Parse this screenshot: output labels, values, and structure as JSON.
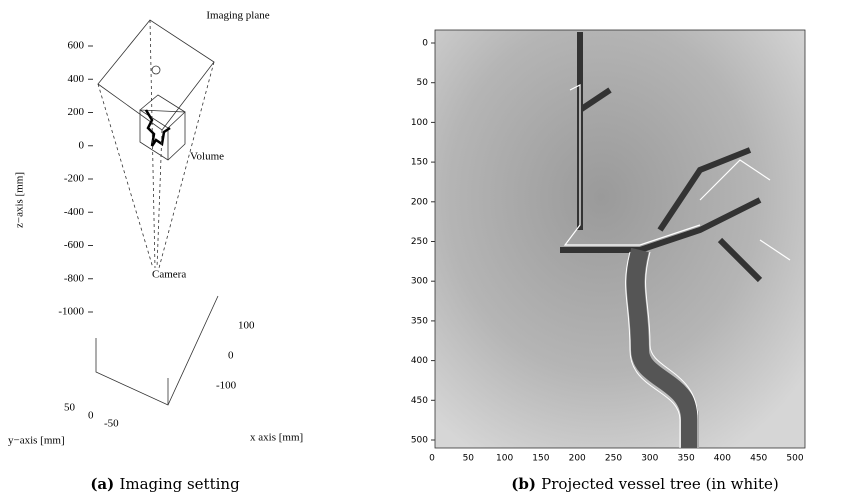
{
  "panels": [
    {
      "title": "Imaging plane",
      "z_axis_label": "z−axis [mm]",
      "z_ticks": [
        "600",
        "400",
        "200",
        "0",
        "-200",
        "-400",
        "-600",
        "-800",
        "-1000"
      ],
      "annotations": [
        "Volume",
        "Camera"
      ],
      "x_ticks": [
        "100",
        "0",
        "-100"
      ],
      "y_ticks": [
        "50",
        "0",
        "-50"
      ],
      "y_axis_label": "y−axis [mm]",
      "x_axis_label": "x  axis [mm]",
      "caption_tag": "(a)",
      "caption": "Imaging setting"
    },
    {
      "y_ticks": [
        "0",
        "50",
        "100",
        "150",
        "200",
        "250",
        "300",
        "350",
        "400",
        "450",
        "500"
      ],
      "x_ticks": [
        "0",
        "50",
        "100",
        "150",
        "200",
        "250",
        "300",
        "350",
        "400",
        "450",
        "500"
      ],
      "caption_tag": "(b)",
      "caption": "Projected vessel tree (in white)"
    }
  ]
}
